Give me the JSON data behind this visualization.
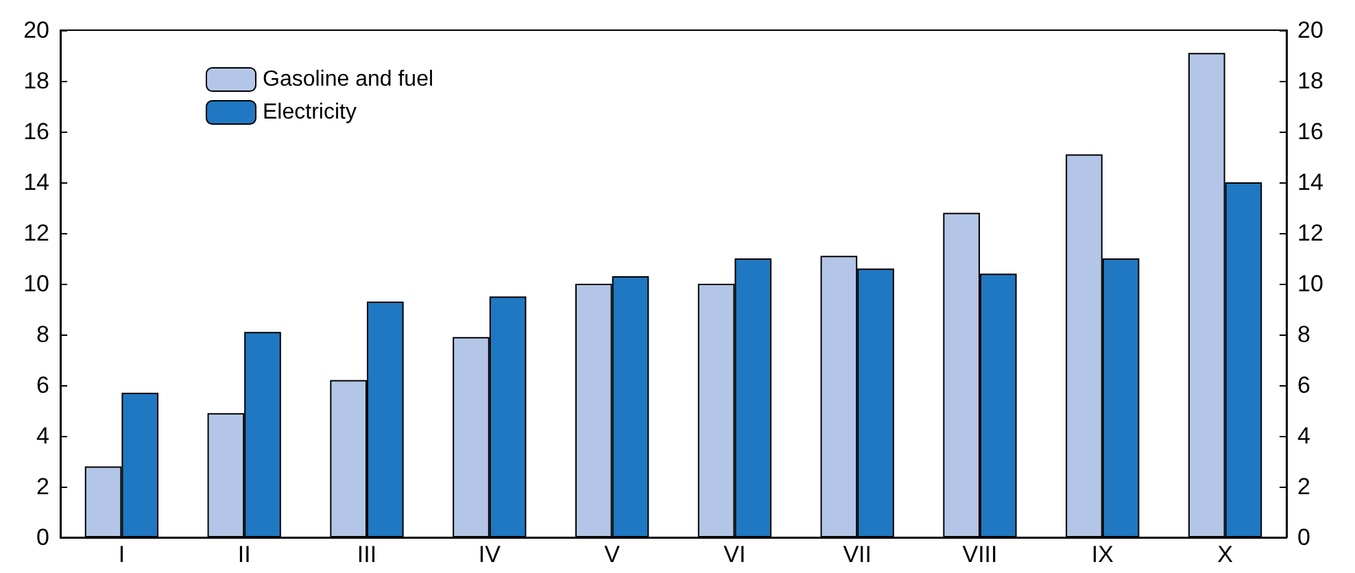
{
  "chart_data": {
    "type": "bar",
    "categories": [
      "I",
      "II",
      "III",
      "IV",
      "V",
      "VI",
      "VII",
      "VIII",
      "IX",
      "X"
    ],
    "series": [
      {
        "name": "Gasoline and fuel",
        "color": "#b4c6e7",
        "values": [
          2.8,
          4.9,
          6.2,
          7.9,
          10.0,
          10.0,
          11.1,
          12.8,
          15.1,
          19.1
        ]
      },
      {
        "name": "Electricity",
        "color": "#1f78c1",
        "values": [
          5.7,
          8.1,
          9.3,
          9.5,
          10.3,
          11.0,
          10.6,
          10.4,
          11.0,
          14.0
        ]
      }
    ],
    "ylim": [
      0,
      20
    ],
    "yticks": [
      0,
      2,
      4,
      6,
      8,
      10,
      12,
      14,
      16,
      18,
      20
    ],
    "y2lim": [
      0,
      20
    ],
    "y2ticks": [
      0,
      2,
      4,
      6,
      8,
      10,
      12,
      14,
      16,
      18,
      20
    ],
    "grid": false,
    "legend": "top left"
  }
}
